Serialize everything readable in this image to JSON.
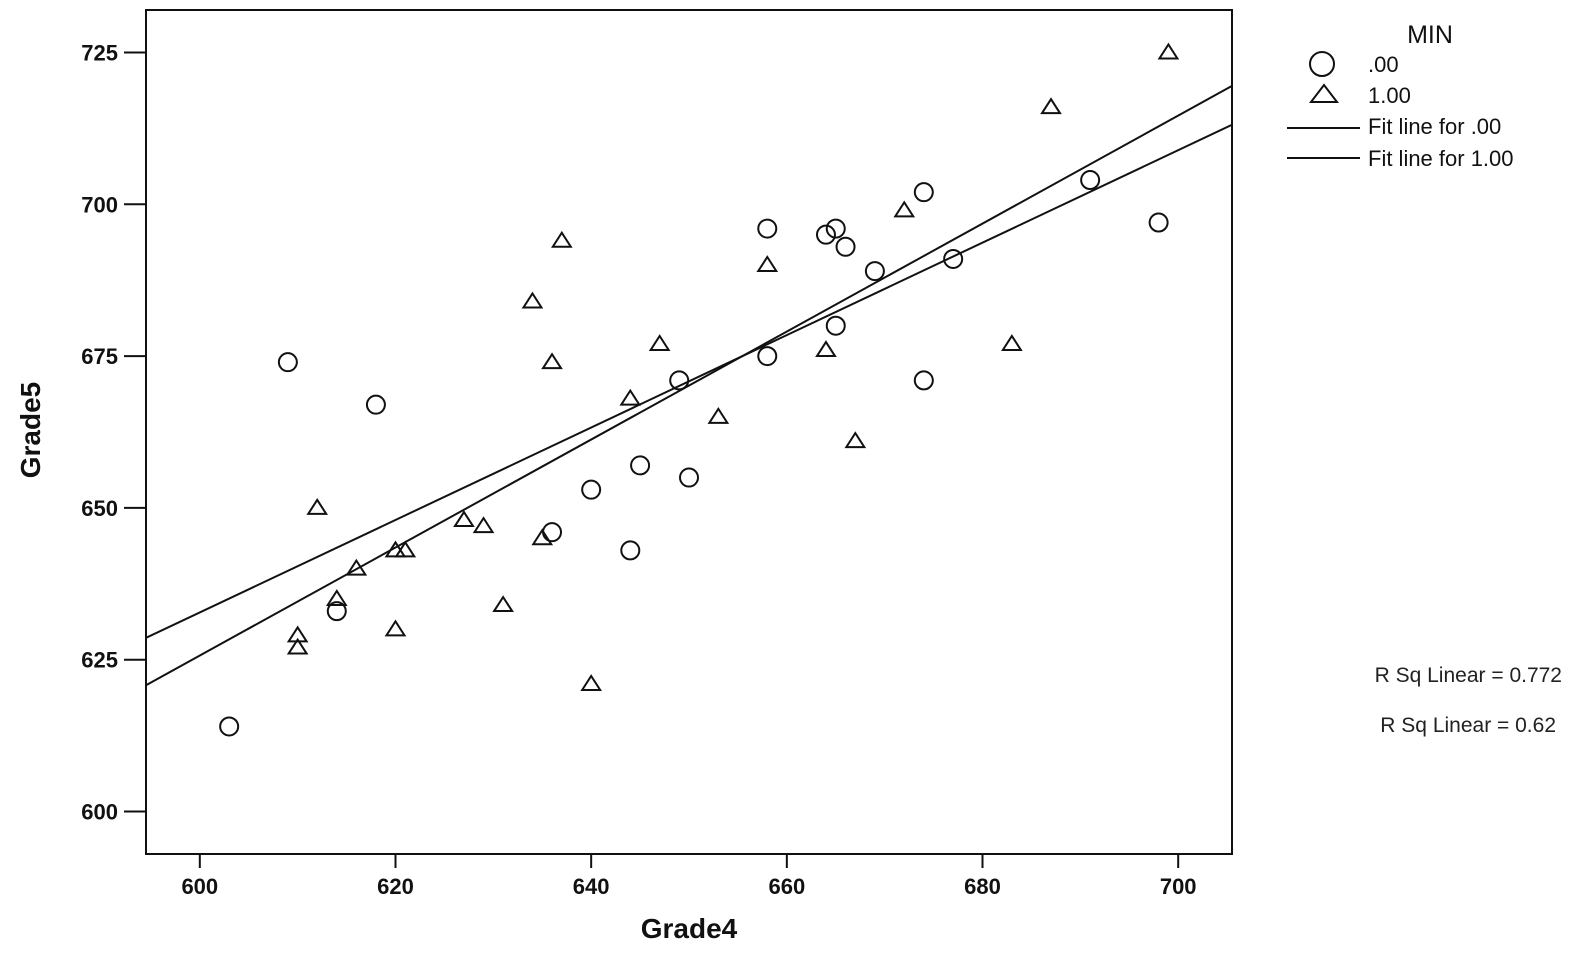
{
  "chart_data": {
    "type": "scatter",
    "xlabel": "Grade4",
    "ylabel": "Grade5",
    "xlim": [
      594.5,
      705.5
    ],
    "ylim": [
      593,
      732
    ],
    "xticks": [
      600,
      620,
      640,
      660,
      680,
      700
    ],
    "yticks": [
      600,
      625,
      650,
      675,
      700,
      725
    ],
    "legend": {
      "title": "MIN",
      "placement": "right",
      "entries": [
        {
          "label": ".00",
          "marker": "circle"
        },
        {
          "label": "1.00",
          "marker": "triangle"
        },
        {
          "label": "Fit line for .00",
          "marker": "line"
        },
        {
          "label": "Fit line for 1.00",
          "marker": "line"
        }
      ]
    },
    "annotations": [
      "R Sq Linear = 0.772",
      "R Sq Linear = 0.62"
    ],
    "series": [
      {
        "name": ".00",
        "marker": "circle",
        "points": [
          [
            603,
            614
          ],
          [
            609,
            674
          ],
          [
            614,
            633
          ],
          [
            618,
            667
          ],
          [
            636,
            646
          ],
          [
            640,
            653
          ],
          [
            644,
            643
          ],
          [
            645,
            657
          ],
          [
            649,
            671
          ],
          [
            650,
            655
          ],
          [
            658,
            675
          ],
          [
            658,
            696
          ],
          [
            664,
            695
          ],
          [
            665,
            696
          ],
          [
            665,
            680
          ],
          [
            666,
            693
          ],
          [
            669,
            689
          ],
          [
            674,
            702
          ],
          [
            674,
            671
          ],
          [
            677,
            691
          ],
          [
            691,
            704
          ],
          [
            698,
            697
          ]
        ]
      },
      {
        "name": "1.00",
        "marker": "triangle",
        "points": [
          [
            610,
            629
          ],
          [
            610,
            627
          ],
          [
            612,
            650
          ],
          [
            614,
            635
          ],
          [
            616,
            640
          ],
          [
            620,
            643
          ],
          [
            620,
            630
          ],
          [
            621,
            643
          ],
          [
            627,
            648
          ],
          [
            629,
            647
          ],
          [
            631,
            634
          ],
          [
            634,
            684
          ],
          [
            635,
            645
          ],
          [
            636,
            674
          ],
          [
            637,
            694
          ],
          [
            640,
            621
          ],
          [
            644,
            668
          ],
          [
            647,
            677
          ],
          [
            653,
            665
          ],
          [
            658,
            690
          ],
          [
            664,
            676
          ],
          [
            667,
            661
          ],
          [
            672,
            699
          ],
          [
            683,
            677
          ],
          [
            687,
            716
          ],
          [
            699,
            725
          ]
        ]
      }
    ],
    "fit_lines": [
      {
        "x": [
          594.5,
          705.5
        ],
        "y": [
          628.6,
          713.1
        ]
      },
      {
        "x": [
          594.5,
          705.5
        ],
        "y": [
          620.8,
          719.5
        ]
      }
    ]
  }
}
